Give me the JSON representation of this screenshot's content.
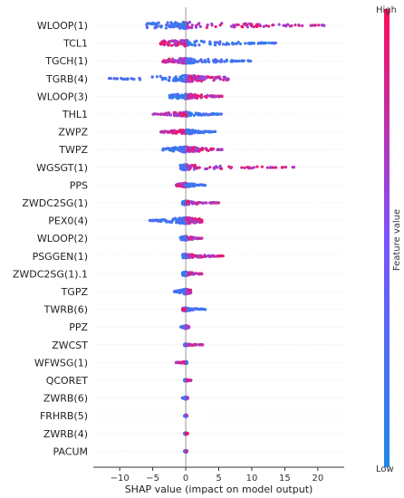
{
  "chart_data": {
    "type": "scatter",
    "subtype": "shap-beeswarm",
    "title": "",
    "xlabel": "SHAP value (impact on model output)",
    "xlim": [
      -14,
      24
    ],
    "xticks": [
      -10,
      -5,
      0,
      5,
      10,
      15,
      20
    ],
    "colorbar": {
      "label": "Feature value",
      "high_label": "High",
      "low_label": "Low",
      "low_color": "#1e88e5",
      "high_color": "#ff0d57"
    },
    "features": [
      {
        "name": "WLOOP(1)",
        "min": -6.0,
        "max": 21.0,
        "low_side": "negative",
        "density": 1.0
      },
      {
        "name": "TCL1",
        "min": -4.0,
        "max": 14.0,
        "low_side": "positive",
        "density": 0.9
      },
      {
        "name": "TGCH(1)",
        "min": -3.5,
        "max": 10.0,
        "low_side": "positive",
        "density": 0.8
      },
      {
        "name": "TGRB(4)",
        "min": -12.0,
        "max": 6.5,
        "low_side": "negative",
        "density": 1.0
      },
      {
        "name": "WLOOP(3)",
        "min": -2.5,
        "max": 5.5,
        "low_side": "negative",
        "density": 0.8
      },
      {
        "name": "THL1",
        "min": -5.0,
        "max": 5.5,
        "low_side": "positive",
        "density": 0.7
      },
      {
        "name": "ZWPZ",
        "min": -4.0,
        "max": 4.5,
        "low_side": "positive",
        "density": 0.7
      },
      {
        "name": "TWPZ",
        "min": -3.5,
        "max": 5.5,
        "low_side": "negative",
        "density": 0.9
      },
      {
        "name": "WGSGT(1)",
        "min": -0.8,
        "max": 16.5,
        "low_side": "negative",
        "density": 0.8
      },
      {
        "name": "PPS",
        "min": -1.5,
        "max": 3.0,
        "low_side": "positive",
        "density": 0.6
      },
      {
        "name": "ZWDC2SG(1)",
        "min": -0.5,
        "max": 5.0,
        "low_side": "negative",
        "density": 0.6
      },
      {
        "name": "PEX0(4)",
        "min": -5.5,
        "max": 2.5,
        "low_side": "negative",
        "density": 1.0
      },
      {
        "name": "WLOOP(2)",
        "min": -0.8,
        "max": 2.5,
        "low_side": "negative",
        "density": 0.6
      },
      {
        "name": "PSGGEN(1)",
        "min": -0.5,
        "max": 6.0,
        "low_side": "negative",
        "density": 0.6
      },
      {
        "name": "ZWDC2SG(1).1",
        "min": -0.5,
        "max": 2.5,
        "low_side": "negative",
        "density": 0.6
      },
      {
        "name": "TGPZ",
        "min": -1.8,
        "max": 0.8,
        "low_side": "negative",
        "density": 0.8
      },
      {
        "name": "TWRB(6)",
        "min": -0.5,
        "max": 3.0,
        "low_side": "positive",
        "density": 0.5
      },
      {
        "name": "PPZ",
        "min": -0.8,
        "max": 0.5,
        "low_side": "negative",
        "density": 0.5
      },
      {
        "name": "ZWCST",
        "min": -0.2,
        "max": 2.6,
        "low_side": "negative",
        "density": 0.3
      },
      {
        "name": "WFWSG(1)",
        "min": -1.5,
        "max": 0.2,
        "low_side": "positive",
        "density": 0.3
      },
      {
        "name": "QCORET",
        "min": -0.2,
        "max": 0.8,
        "low_side": "negative",
        "density": 0.3
      },
      {
        "name": "ZWRB(6)",
        "min": -0.5,
        "max": 0.3,
        "low_side": "negative",
        "density": 0.4
      },
      {
        "name": "FRHRB(5)",
        "min": -0.2,
        "max": 0.2,
        "low_side": "negative",
        "density": 0.3
      },
      {
        "name": "ZWRB(4)",
        "min": -0.2,
        "max": 0.3,
        "low_side": "negative",
        "density": 0.3
      },
      {
        "name": "PACUM",
        "min": -0.2,
        "max": 0.2,
        "low_side": "negative",
        "density": 0.3
      }
    ]
  }
}
